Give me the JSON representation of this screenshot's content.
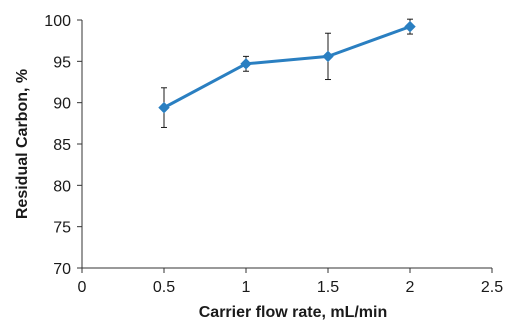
{
  "chart_data": {
    "type": "line",
    "title": "",
    "xlabel": "Carrier flow rate, mL/min",
    "ylabel": "Residual Carbon, %",
    "xlim": [
      0,
      2.5
    ],
    "ylim": [
      70,
      100
    ],
    "x_ticks": [
      "0",
      "0.5",
      "1",
      "1.5",
      "2",
      "2.5"
    ],
    "y_ticks": [
      "70",
      "75",
      "80",
      "85",
      "90",
      "95",
      "100"
    ],
    "grid": false,
    "legend": "none",
    "series": [
      {
        "color": "#2a7fc1",
        "marker": "diamond",
        "x": [
          0.5,
          1,
          1.5,
          2
        ],
        "y": [
          89.4,
          94.7,
          95.6,
          99.2
        ],
        "error": [
          2.4,
          0.9,
          2.8,
          0.9
        ]
      }
    ]
  }
}
